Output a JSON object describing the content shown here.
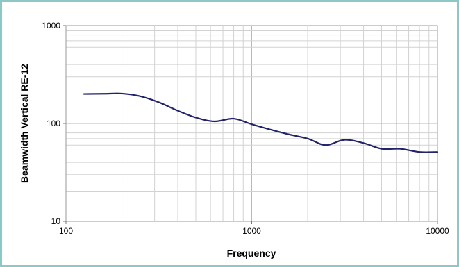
{
  "chart_data": {
    "type": "line",
    "xlabel": "Frequency",
    "ylabel": "Beamwidth Vertical RE-12",
    "xscale": "log",
    "yscale": "log",
    "xlim": [
      100,
      10000
    ],
    "ylim": [
      10,
      1000
    ],
    "grid": true,
    "x_ticks": [
      "100",
      "1000",
      "10000"
    ],
    "y_ticks": [
      "10",
      "100",
      "1000"
    ],
    "series": [
      {
        "color": "#23236b",
        "x": [
          125,
          160,
          200,
          250,
          315,
          400,
          500,
          630,
          800,
          1000,
          1250,
          1600,
          2000,
          2500,
          3150,
          4000,
          5000,
          6300,
          8000,
          10000
        ],
        "y": [
          200,
          201,
          202,
          190,
          165,
          135,
          115,
          105,
          112,
          98,
          87,
          77,
          70,
          60,
          68,
          63,
          55,
          55,
          51,
          51
        ]
      }
    ]
  }
}
